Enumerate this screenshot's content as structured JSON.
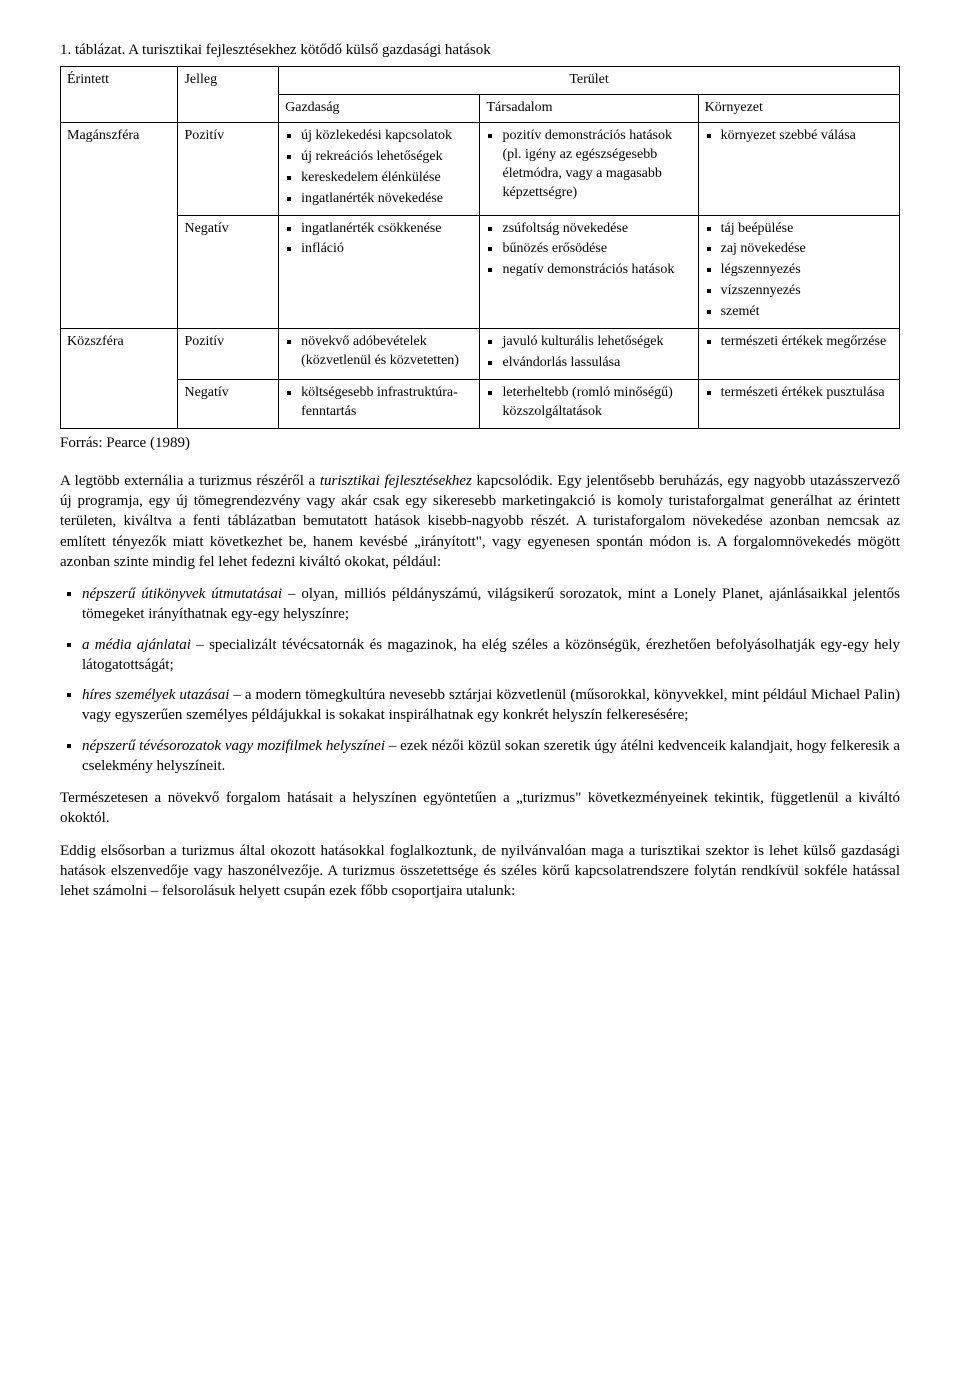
{
  "table": {
    "caption": "1. táblázat. A turisztikai fejlesztésekhez kötődő külső gazdasági hatások",
    "col_widths": [
      "14%",
      "12%",
      "24%",
      "26%",
      "24%"
    ],
    "header": {
      "col1": "Érintett",
      "col2": "Jelleg",
      "terulet": "Terület",
      "gazdasag": "Gazdaság",
      "tarsadalom": "Társadalom",
      "kornyezet": "Környezet"
    },
    "rows": [
      {
        "erintett": "Magánszféra",
        "jelleg": "Pozitív",
        "gazdasag": [
          "új közlekedési kapcsolatok",
          "új rekreációs lehetőségek",
          "kereskedelem élénkülése",
          "ingatlanérték növekedése"
        ],
        "tarsadalom": [
          "pozitív demonstrációs hatások (pl. igény az egészségesebb életmódra, vagy a magasabb képzettségre)"
        ],
        "kornyezet": [
          "környezet szebbé válása"
        ]
      },
      {
        "erintett": "",
        "jelleg": "Negatív",
        "gazdasag": [
          "ingatlanérték csökkenése",
          "infláció"
        ],
        "tarsadalom": [
          "zsúfoltság növekedése",
          "bűnözés erősödése",
          "negatív demonstrációs hatások"
        ],
        "kornyezet": [
          "táj beépülése",
          "zaj növekedése",
          "légszennyezés",
          "vízszennyezés",
          "szemét"
        ]
      },
      {
        "erintett": "Közszféra",
        "jelleg": "Pozitív",
        "gazdasag": [
          "növekvő adóbevételek (közvetlenül és közvetetten)"
        ],
        "tarsadalom": [
          "javuló kulturális lehetőségek",
          "elvándorlás lassulása"
        ],
        "kornyezet": [
          "természeti értékek megőrzése"
        ]
      },
      {
        "erintett": "",
        "jelleg": "Negatív",
        "gazdasag": [
          "költségesebb infrastruktúra-fenntartás"
        ],
        "tarsadalom": [
          "leterheltebb (romló minőségű) közszolgáltatások"
        ],
        "kornyezet": [
          "természeti értékek pusztulása"
        ]
      }
    ],
    "source": "Forrás: Pearce (1989)"
  },
  "paragraphs": {
    "p1_a": "A legtöbb externália a turizmus részéről a ",
    "p1_i": "turisztikai fejlesztésekhez",
    "p1_b": " kapcsolódik. Egy jelentősebb beruházás, egy nagyobb utazásszervező új programja, egy új tömegrendezvény vagy akár csak egy sikeresebb marketingakció is komoly turistaforgalmat generálhat az érintett területen, kiváltva a fenti táblázatban bemutatott hatások kisebb-nagyobb részét. A turistaforgalom növekedése azonban nemcsak az említett tényezők miatt következhet be, hanem kevésbé „irányított\", vagy egyenesen spontán módon is. A forgalomnövekedés mögött azonban szinte mindig fel lehet fedezni kiváltó okokat, például:",
    "p2": "Természetesen a növekvő forgalom hatásait a helyszínen egyöntetűen a „turizmus\" következményeinek tekintik, függetlenül a kiváltó okoktól.",
    "p3": "Eddig elsősorban a turizmus által okozott hatásokkal foglalkoztunk, de nyilvánvalóan maga a turisztikai szektor is lehet külső gazdasági hatások elszenvedője vagy haszonélvezője. A turizmus összetettsége és széles körű kapcsolatrendszere folytán rendkívül sokféle hatással lehet számolni – felsorolásuk helyett csupán ezek főbb csoportjaira utalunk:"
  },
  "bullets": [
    {
      "lead": "népszerű útikönyvek útmutatásai",
      "rest": " – olyan, milliós példányszámú, világsikerű sorozatok, mint a Lonely Planet, ajánlásaikkal jelentős tömegeket irányíthatnak egy-egy helyszínre;"
    },
    {
      "lead": "a média ajánlatai",
      "rest": " – specializált tévécsatornák és magazinok, ha elég széles a közönségük, érezhetően befolyásolhatják egy-egy hely látogatottságát;"
    },
    {
      "lead": "híres személyek utazásai",
      "rest": " – a modern tömegkultúra nevesebb sztárjai közvetlenül (műsorokkal, könyvekkel, mint például Michael Palin) vagy egyszerűen személyes példájukkal is sokakat inspirálhatnak egy konkrét helyszín felkeresésére;"
    },
    {
      "lead": "népszerű tévésorozatok vagy mozifilmek helyszínei",
      "rest": " – ezek nézői közül sokan szeretik úgy átélni kedvenceik kalandjait, hogy felkeresik a cselekmény helyszíneit."
    }
  ]
}
